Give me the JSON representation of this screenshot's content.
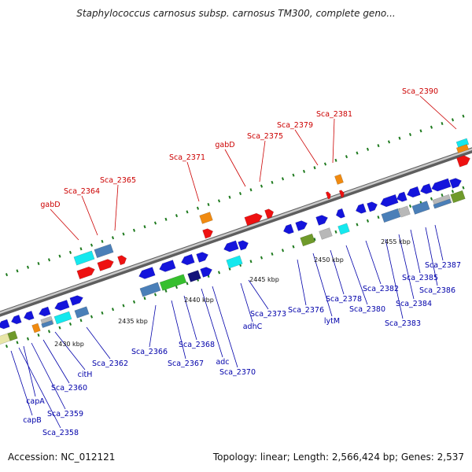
{
  "title": "Staphylococcus carnosus subsp. carnosus TM300, complete geno...",
  "footer": {
    "accession": "Accession: NC_012121",
    "summary": "Topology: linear; Length: 2,566,424 bp; Genes: 2,537"
  },
  "colors": {
    "cds": "#1414dc",
    "rna": "#ee1111",
    "steelblue": "#4a7fb8",
    "cyan": "#15e8ee",
    "green": "#36bf2e",
    "olive": "#6f9a2b",
    "orange": "#f08a10",
    "gray": "#b8b8b8",
    "navy": "#13137a",
    "yellowish": "#e8e6a8",
    "label_top": "#cc0000",
    "label_bottom": "#0000aa",
    "backbone": "#8a8a8a",
    "tickmark": "#1e7a1e"
  },
  "scale_labels": [
    "2430 kbp",
    "2435 kbp",
    "2440 kbp",
    "2445 kbp",
    "2450 kbp",
    "2455 kbp"
  ],
  "top_labels": [
    "gabD",
    "Sca_2364",
    "Sca_2365",
    "Sca_2371",
    "gabD",
    "Sca_2375",
    "Sca_2379",
    "Sca_2381",
    "Sca_2390"
  ],
  "bottom_labels": [
    "capB",
    "Sca_2358",
    "capA",
    "Sca_2359",
    "Sca_2360",
    "citH",
    "Sca_2362",
    "Sca_2366",
    "Sca_2367",
    "Sca_2368",
    "adc",
    "Sca_2370",
    "adhC",
    "Sca_2373",
    "Sca_2376",
    "lytM",
    "Sca_2378",
    "Sca_2380",
    "Sca_2382",
    "Sca_2383",
    "Sca_2384",
    "Sca_2385",
    "Sca_2386",
    "Sca_2387"
  ]
}
